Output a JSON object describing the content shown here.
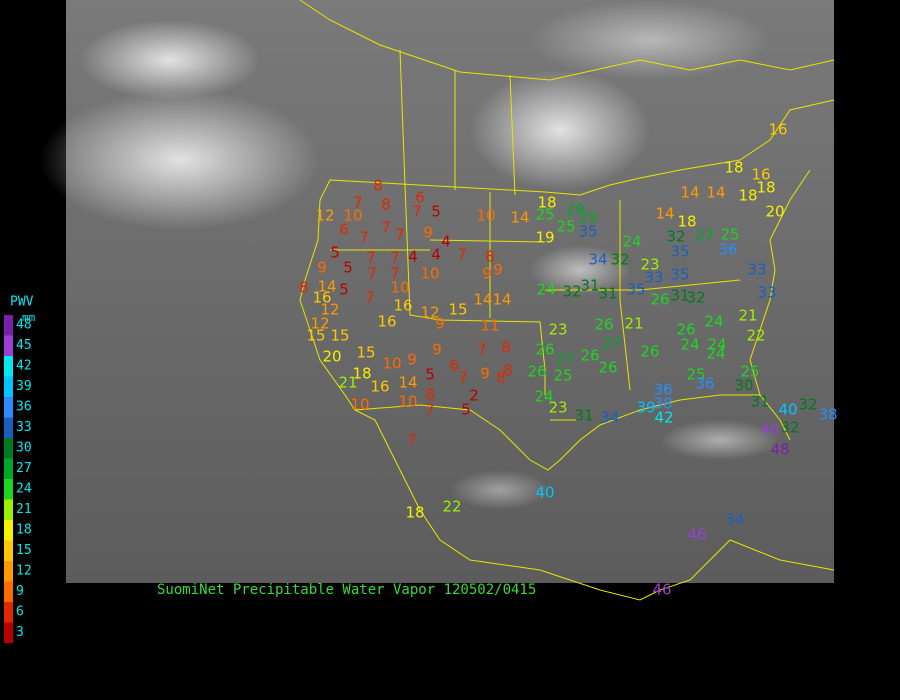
{
  "title": "SuomiNet Precipitable Water Vapor 120502/0415",
  "legend": {
    "title": "PWV",
    "unit": "mm",
    "items": [
      {
        "value": 48,
        "color": "#7a1fa8"
      },
      {
        "value": 45,
        "color": "#9b3fd6"
      },
      {
        "value": 42,
        "color": "#00e8f0"
      },
      {
        "value": 39,
        "color": "#00c4ff"
      },
      {
        "value": 36,
        "color": "#2a8cff"
      },
      {
        "value": 33,
        "color": "#1a5fc0"
      },
      {
        "value": 30,
        "color": "#007a1e"
      },
      {
        "value": 27,
        "color": "#00a82a"
      },
      {
        "value": 24,
        "color": "#1fd61f"
      },
      {
        "value": 21,
        "color": "#9ef000"
      },
      {
        "value": 18,
        "color": "#f4f000"
      },
      {
        "value": 15,
        "color": "#ffc800"
      },
      {
        "value": 12,
        "color": "#ff9a00"
      },
      {
        "value": 9,
        "color": "#ff6a00"
      },
      {
        "value": 6,
        "color": "#e02800"
      },
      {
        "value": 3,
        "color": "#b80000"
      }
    ]
  },
  "stations": [
    8,
    7,
    8,
    6,
    5,
    7,
    12,
    10,
    6,
    7,
    7,
    7,
    9,
    4,
    4,
    4,
    7,
    8,
    10,
    14,
    18,
    25,
    29,
    29,
    25,
    35,
    19,
    5,
    5,
    7,
    7,
    9,
    7,
    7,
    10,
    9,
    9,
    8,
    14,
    5,
    7,
    10,
    16,
    12,
    16,
    12,
    15,
    14,
    14,
    12,
    15,
    15,
    16,
    9,
    11,
    20,
    15,
    10,
    9,
    9,
    6,
    7,
    8,
    18,
    21,
    16,
    14,
    5,
    7,
    9,
    8,
    8,
    8,
    10,
    10,
    2,
    5,
    7,
    7,
    18,
    22,
    40,
    24,
    32,
    31,
    31,
    35,
    33,
    32,
    34,
    24,
    23,
    35,
    32,
    27,
    25,
    36,
    35,
    32,
    26,
    31,
    23,
    26,
    21,
    26,
    24,
    21,
    22,
    26,
    27,
    26,
    27,
    26,
    24,
    24,
    24,
    26,
    25,
    26,
    25,
    25,
    24,
    23,
    31,
    34,
    39,
    38,
    42,
    36,
    36,
    30,
    31,
    40,
    32,
    38,
    46,
    32,
    48,
    46,
    34,
    46,
    14,
    18,
    14,
    14,
    18,
    18,
    16,
    20,
    16,
    18,
    33,
    33
  ]
}
